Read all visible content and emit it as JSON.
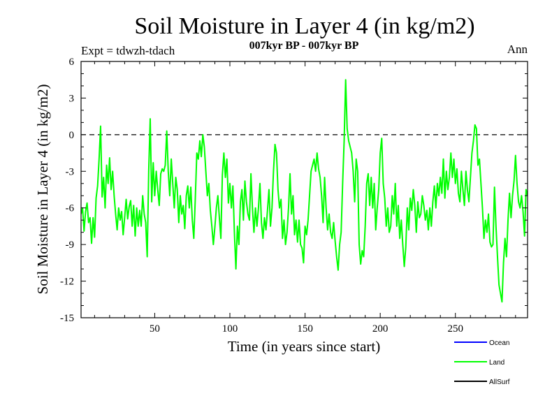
{
  "chart_data": {
    "type": "line",
    "title": "Soil Moisture in Layer 4 (in kg/m2)",
    "subtitle": "007kyr BP - 007kyr BP",
    "experiment": "Expt = tdwzh-tdach",
    "period": "Ann",
    "xlabel": "Time (in years since start)",
    "ylabel": "Soil Moisture in Layer 4 (in kg/m2)",
    "xlim": [
      1,
      298
    ],
    "ylim": [
      -15,
      6
    ],
    "x_ticks": [
      50,
      100,
      150,
      200,
      250
    ],
    "x_tick_labels": [
      "50",
      "100",
      "150",
      "200",
      "250"
    ],
    "y_ticks": [
      6,
      3,
      0,
      -3,
      -6,
      -9,
      -12,
      -15
    ],
    "y_tick_labels": [
      "6",
      "3",
      "0",
      "-3",
      "-6",
      "-9",
      "-12",
      "-15"
    ],
    "reference_line": 0,
    "legend": [
      {
        "name": "Ocean",
        "color": "#0000ff"
      },
      {
        "name": "Land",
        "color": "#00ff00"
      },
      {
        "name": "AllSurf",
        "color": "#000000"
      }
    ],
    "series": [
      {
        "name": "Land",
        "color": "#00ff00",
        "keypoints": [
          [
            1,
            -6.5
          ],
          [
            2,
            -6.0
          ],
          [
            3,
            -7.9
          ],
          [
            4,
            -6.3
          ],
          [
            5,
            -5.6
          ],
          [
            6,
            -7.2
          ],
          [
            7,
            -6.8
          ],
          [
            8,
            -8.9
          ],
          [
            9,
            -6.8
          ],
          [
            10,
            -8.4
          ],
          [
            11,
            -5.2
          ],
          [
            12,
            -4.2
          ],
          [
            13,
            -2.0
          ],
          [
            14,
            0.7
          ],
          [
            15,
            -5.1
          ],
          [
            16,
            -3.5
          ],
          [
            17,
            -6.0
          ],
          [
            18,
            -2.5
          ],
          [
            19,
            -4.0
          ],
          [
            20,
            -1.9
          ],
          [
            21,
            -4.5
          ],
          [
            22,
            -3.0
          ],
          [
            23,
            -5.0
          ],
          [
            24,
            -6.5
          ],
          [
            25,
            -7.8
          ],
          [
            26,
            -6.0
          ],
          [
            27,
            -7.0
          ],
          [
            28,
            -6.3
          ],
          [
            29,
            -8.2
          ],
          [
            30,
            -6.8
          ],
          [
            31,
            -5.3
          ],
          [
            32,
            -6.9
          ],
          [
            33,
            -5.9
          ],
          [
            34,
            -5.4
          ],
          [
            35,
            -7.5
          ],
          [
            36,
            -5.8
          ],
          [
            37,
            -8.3
          ],
          [
            38,
            -6.0
          ],
          [
            39,
            -7.5
          ],
          [
            40,
            -6.2
          ],
          [
            41,
            -7.5
          ],
          [
            42,
            -5.0
          ],
          [
            43,
            -6.5
          ],
          [
            44,
            -7.2
          ],
          [
            45,
            -10.0
          ],
          [
            46,
            -3.0
          ],
          [
            47,
            1.3
          ],
          [
            48,
            -5.5
          ],
          [
            49,
            -2.3
          ],
          [
            50,
            -5.0
          ],
          [
            51,
            -3.0
          ],
          [
            52,
            -4.5
          ],
          [
            53,
            -5.8
          ],
          [
            54,
            -3.2
          ],
          [
            55,
            -2.8
          ],
          [
            56,
            -3.0
          ],
          [
            57,
            -2.5
          ],
          [
            58,
            0.3
          ],
          [
            59,
            -3.0
          ],
          [
            60,
            -5.0
          ],
          [
            61,
            -2.0
          ],
          [
            62,
            -4.0
          ],
          [
            63,
            -6.0
          ],
          [
            64,
            -3.5
          ],
          [
            65,
            -4.5
          ],
          [
            66,
            -7.2
          ],
          [
            67,
            -5.0
          ],
          [
            68,
            -6.5
          ],
          [
            69,
            -5.8
          ],
          [
            70,
            -7.7
          ],
          [
            71,
            -5.0
          ],
          [
            72,
            -4.2
          ],
          [
            73,
            -6.0
          ],
          [
            74,
            -4.3
          ],
          [
            75,
            -7.0
          ],
          [
            76,
            -8.5
          ],
          [
            77,
            -5.2
          ],
          [
            78,
            -1.5
          ],
          [
            79,
            -2.0
          ],
          [
            80,
            -0.5
          ],
          [
            81,
            -1.8
          ],
          [
            82,
            0.0
          ],
          [
            83,
            -1.0
          ],
          [
            84,
            -3.0
          ],
          [
            85,
            -5.0
          ],
          [
            86,
            -4.0
          ],
          [
            87,
            -6.2
          ],
          [
            88,
            -7.5
          ],
          [
            89,
            -9.0
          ],
          [
            90,
            -7.6
          ],
          [
            91,
            -6.0
          ],
          [
            92,
            -5.0
          ],
          [
            93,
            -6.8
          ],
          [
            94,
            -8.5
          ],
          [
            95,
            -3.3
          ],
          [
            96,
            -1.5
          ],
          [
            97,
            -3.5
          ],
          [
            98,
            -2.0
          ],
          [
            99,
            -5.6
          ],
          [
            100,
            -4.0
          ],
          [
            101,
            -6.0
          ],
          [
            102,
            -4.2
          ],
          [
            103,
            -8.0
          ],
          [
            104,
            -11.0
          ],
          [
            105,
            -7.5
          ],
          [
            106,
            -9.0
          ],
          [
            107,
            -5.5
          ],
          [
            108,
            -4.5
          ],
          [
            109,
            -7.0
          ],
          [
            110,
            -3.8
          ],
          [
            111,
            -5.5
          ],
          [
            112,
            -6.5
          ],
          [
            113,
            -7.0
          ],
          [
            114,
            -3.2
          ],
          [
            115,
            -6.0
          ],
          [
            116,
            -8.0
          ],
          [
            117,
            -6.0
          ],
          [
            118,
            -7.5
          ],
          [
            119,
            -6.0
          ],
          [
            120,
            -4.0
          ],
          [
            121,
            -7.2
          ],
          [
            122,
            -8.5
          ],
          [
            123,
            -6.8
          ],
          [
            124,
            -7.8
          ],
          [
            125,
            -6.2
          ],
          [
            126,
            -4.5
          ],
          [
            127,
            -7.5
          ],
          [
            128,
            -6.0
          ],
          [
            129,
            -3.0
          ],
          [
            130,
            -0.8
          ],
          [
            131,
            -1.5
          ],
          [
            132,
            -4.5
          ],
          [
            133,
            -6.0
          ],
          [
            134,
            -5.3
          ],
          [
            135,
            -8.5
          ],
          [
            136,
            -7.0
          ],
          [
            137,
            -9.0
          ],
          [
            138,
            -8.0
          ],
          [
            139,
            -6.0
          ],
          [
            140,
            -3.2
          ],
          [
            141,
            -6.5
          ],
          [
            142,
            -5.0
          ],
          [
            143,
            -8.2
          ],
          [
            144,
            -7.0
          ],
          [
            145,
            -8.8
          ],
          [
            146,
            -7.0
          ],
          [
            147,
            -9.0
          ],
          [
            148,
            -9.3
          ],
          [
            149,
            -10.5
          ],
          [
            150,
            -7.5
          ],
          [
            151,
            -8.2
          ],
          [
            152,
            -7.0
          ],
          [
            153,
            -5.0
          ],
          [
            154,
            -3.0
          ],
          [
            155,
            -2.5
          ],
          [
            156,
            -2.0
          ],
          [
            157,
            -3.0
          ],
          [
            158,
            -1.5
          ],
          [
            159,
            -2.8
          ],
          [
            160,
            -3.5
          ],
          [
            161,
            -5.0
          ],
          [
            162,
            -7.2
          ],
          [
            163,
            -3.5
          ],
          [
            164,
            -6.0
          ],
          [
            165,
            -7.8
          ],
          [
            166,
            -6.5
          ],
          [
            167,
            -8.0
          ],
          [
            168,
            -8.5
          ],
          [
            169,
            -7.2
          ],
          [
            170,
            -8.7
          ],
          [
            171,
            -10.0
          ],
          [
            172,
            -11.1
          ],
          [
            173,
            -9.0
          ],
          [
            174,
            -8.0
          ],
          [
            175,
            -4.0
          ],
          [
            176,
            -0.5
          ],
          [
            177,
            4.5
          ],
          [
            178,
            0.5
          ],
          [
            179,
            -0.5
          ],
          [
            180,
            -1.0
          ],
          [
            181,
            -1.5
          ],
          [
            182,
            -3.0
          ],
          [
            183,
            -5.5
          ],
          [
            184,
            -2.0
          ],
          [
            185,
            -3.0
          ],
          [
            186,
            -9.0
          ],
          [
            187,
            -10.6
          ],
          [
            188,
            -9.5
          ],
          [
            189,
            -10.0
          ],
          [
            190,
            -7.5
          ],
          [
            191,
            -4.0
          ],
          [
            192,
            -3.2
          ],
          [
            193,
            -5.8
          ],
          [
            194,
            -3.5
          ],
          [
            195,
            -6.0
          ],
          [
            196,
            -4.0
          ],
          [
            197,
            -7.8
          ],
          [
            198,
            -6.0
          ],
          [
            199,
            -4.5
          ],
          [
            200,
            -1.5
          ],
          [
            201,
            -0.3
          ],
          [
            202,
            -4.0
          ],
          [
            203,
            -5.2
          ],
          [
            204,
            -7.5
          ],
          [
            205,
            -6.0
          ],
          [
            206,
            -8.0
          ],
          [
            207,
            -7.5
          ],
          [
            208,
            -5.0
          ],
          [
            209,
            -6.5
          ],
          [
            210,
            -4.0
          ],
          [
            211,
            -7.5
          ],
          [
            212,
            -5.8
          ],
          [
            213,
            -8.5
          ],
          [
            214,
            -7.0
          ],
          [
            215,
            -9.0
          ],
          [
            216,
            -10.8
          ],
          [
            217,
            -9.2
          ],
          [
            218,
            -6.0
          ],
          [
            219,
            -7.8
          ],
          [
            220,
            -5.2
          ],
          [
            221,
            -6.2
          ],
          [
            222,
            -4.5
          ],
          [
            223,
            -5.8
          ],
          [
            224,
            -8.0
          ],
          [
            225,
            -5.5
          ],
          [
            226,
            -6.8
          ],
          [
            227,
            -6.5
          ],
          [
            228,
            -5.0
          ],
          [
            229,
            -5.8
          ],
          [
            230,
            -7.0
          ],
          [
            231,
            -6.2
          ],
          [
            232,
            -7.8
          ],
          [
            233,
            -6.0
          ],
          [
            234,
            -7.5
          ],
          [
            235,
            -5.5
          ],
          [
            236,
            -4.2
          ],
          [
            237,
            -6.0
          ],
          [
            238,
            -4.0
          ],
          [
            239,
            -5.0
          ],
          [
            240,
            -3.5
          ],
          [
            241,
            -4.8
          ],
          [
            242,
            -2.0
          ],
          [
            243,
            -5.2
          ],
          [
            244,
            -3.0
          ],
          [
            245,
            -4.5
          ],
          [
            246,
            -3.5
          ],
          [
            247,
            -1.5
          ],
          [
            248,
            -3.5
          ],
          [
            249,
            -2.0
          ],
          [
            250,
            -4.0
          ],
          [
            251,
            -2.8
          ],
          [
            252,
            -4.8
          ],
          [
            253,
            -5.5
          ],
          [
            254,
            -3.0
          ],
          [
            255,
            -4.5
          ],
          [
            256,
            -5.8
          ],
          [
            257,
            -3.0
          ],
          [
            258,
            -4.5
          ],
          [
            259,
            -5.5
          ],
          [
            260,
            -3.5
          ],
          [
            261,
            -1.5
          ],
          [
            262,
            -0.5
          ],
          [
            263,
            0.8
          ],
          [
            264,
            0.5
          ],
          [
            265,
            -2.5
          ],
          [
            266,
            -2.0
          ],
          [
            267,
            -4.0
          ],
          [
            268,
            -6.0
          ],
          [
            269,
            -8.5
          ],
          [
            270,
            -7.0
          ],
          [
            271,
            -8.0
          ],
          [
            272,
            -6.5
          ],
          [
            273,
            -8.8
          ],
          [
            274,
            -9.2
          ],
          [
            275,
            -9.0
          ],
          [
            276,
            -4.3
          ],
          [
            277,
            -7.5
          ],
          [
            278,
            -10.0
          ],
          [
            279,
            -12.3
          ],
          [
            280,
            -13.0
          ],
          [
            281,
            -13.7
          ],
          [
            282,
            -10.5
          ],
          [
            283,
            -8.5
          ],
          [
            284,
            -10.0
          ],
          [
            285,
            -7.0
          ],
          [
            286,
            -4.8
          ],
          [
            287,
            -6.8
          ],
          [
            288,
            -5.0
          ],
          [
            289,
            -3.8
          ],
          [
            290,
            -1.7
          ],
          [
            291,
            -4.0
          ],
          [
            292,
            -5.5
          ],
          [
            293,
            -6.0
          ],
          [
            294,
            -5.0
          ],
          [
            295,
            -6.3
          ],
          [
            296,
            -8.3
          ],
          [
            297,
            -4.5
          ],
          [
            298,
            -5.0
          ]
        ]
      }
    ]
  }
}
